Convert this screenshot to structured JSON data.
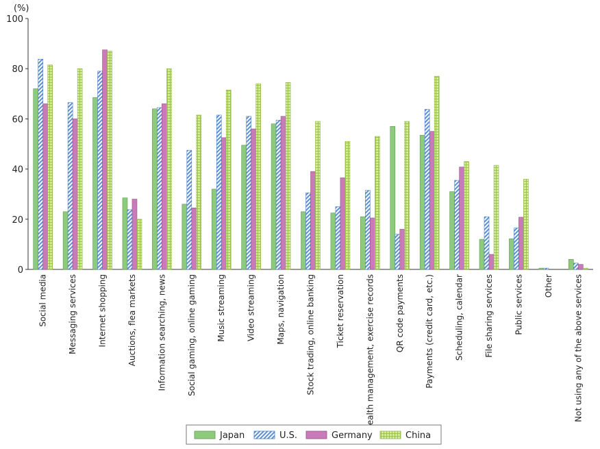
{
  "chart_data": {
    "type": "bar",
    "unit_label": "(%)",
    "ylim": [
      0,
      100
    ],
    "yticks": [
      0,
      20,
      40,
      60,
      80,
      100
    ],
    "grid": false,
    "legend_position": "bottom-center",
    "categories": [
      "Social media",
      "Messaging services",
      "Internet shopping",
      "Auctions, flea markets",
      "Information searching, news",
      "Social gaming, online gaming",
      "Music streaming",
      "Video streaming",
      "Maps, navigation",
      "Stock trading, online banking",
      "Ticket reservation",
      "Health management, exercise records",
      "QR code payments",
      "Payments (credit card, etc.)",
      "Scheduling, calendar",
      "File sharing services",
      "Public services",
      "Other",
      "Not using any of the above services"
    ],
    "series": [
      {
        "name": "Japan",
        "color": "#8dca7c",
        "values": [
          72,
          23,
          68.5,
          28.5,
          64,
          26,
          32,
          49.5,
          58,
          23,
          22.5,
          21,
          57,
          53.5,
          31,
          12,
          12.2,
          0.5,
          4
        ]
      },
      {
        "name": "U.S.",
        "color": "#7aa7e0",
        "values": [
          83.8,
          66.5,
          79,
          23.8,
          64.5,
          47.5,
          61.5,
          61,
          59.5,
          30.5,
          25,
          31.5,
          14,
          63.8,
          35.5,
          21,
          16.5,
          0.5,
          2.5
        ]
      },
      {
        "name": "Germany",
        "color": "#c97ab8",
        "values": [
          66,
          60,
          87.5,
          28,
          66,
          24.5,
          52.5,
          56,
          61,
          39,
          36.5,
          20.5,
          16,
          55,
          40.8,
          6,
          20.8,
          0,
          2
        ]
      },
      {
        "name": "China",
        "color": "#c8e08a",
        "values": [
          81.5,
          80,
          87,
          20,
          80,
          61.5,
          71.5,
          74,
          74.5,
          59,
          51,
          53,
          59,
          77,
          43,
          41.5,
          36,
          0,
          0.5
        ]
      }
    ]
  }
}
